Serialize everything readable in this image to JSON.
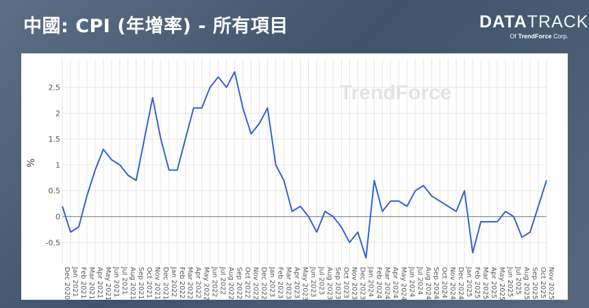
{
  "header": {
    "title": "中國: CPI (年增率) - 所有項目",
    "brand_bold": "DATA",
    "brand_thin": "TRACK",
    "brand_of": "Of",
    "brand_company": "TrendForce",
    "brand_corp": "Corp."
  },
  "watermark": "TrendForce",
  "colors": {
    "line": "#2e5fd6",
    "grid": "#e6e6e6",
    "zero": "#8a8a8a"
  },
  "chart_data": {
    "type": "line",
    "ylabel": "%",
    "ylim": [
      -0.92,
      3.05
    ],
    "yticks": [
      -0.5,
      0,
      0.5,
      1,
      1.5,
      2,
      2.5
    ],
    "grid": true,
    "x": [
      "Dec 2020",
      "Jan 2021",
      "Feb 2021",
      "Mar 2021",
      "Apr 2021",
      "May 2021",
      "Jun 2021",
      "Jul 2021",
      "Aug 2021",
      "Sep 2021",
      "Oct 2021",
      "Nov 2021",
      "Dec 2021",
      "Jan 2022",
      "Feb 2022",
      "Mar 2022",
      "Apr 2022",
      "May 2022",
      "Jun 2022",
      "Jul 2022",
      "Aug 2022",
      "Sep 2022",
      "Oct 2022",
      "Nov 2022",
      "Dec 2022",
      "Jan 2023",
      "Feb 2023",
      "Mar 2023",
      "Apr 2023",
      "May 2023",
      "Jun 2023",
      "Jul 2023",
      "Aug 2023",
      "Sep 2023",
      "Oct 2023",
      "Nov 2023",
      "Dec 2023",
      "Jan 2024",
      "Feb 2024",
      "Mar 2024",
      "Apr 2024",
      "May 2024",
      "Jun 2024",
      "Jul 2024",
      "Aug 2024",
      "Sep 2024",
      "Oct 2024",
      "Nov 2024",
      "Dec 2024",
      "Jan 2025",
      "Feb 2025",
      "Mar 2025",
      "Apr 2025",
      "May 2025",
      "Jun 2025",
      "Jul 2025",
      "Aug 2025",
      "Sep 2025",
      "Oct 2025",
      "Nov 2025"
    ],
    "series": [
      {
        "values": [
          0.2,
          -0.3,
          -0.2,
          0.4,
          0.9,
          1.3,
          1.1,
          1.0,
          0.8,
          0.7,
          1.5,
          2.3,
          1.5,
          0.9,
          0.9,
          1.5,
          2.1,
          2.1,
          2.5,
          2.7,
          2.5,
          2.8,
          2.1,
          1.6,
          1.8,
          2.1,
          1.0,
          0.7,
          0.1,
          0.2,
          0.0,
          -0.3,
          0.1,
          0.0,
          -0.2,
          -0.5,
          -0.3,
          -0.8,
          0.7,
          0.1,
          0.3,
          0.3,
          0.2,
          0.5,
          0.6,
          0.4,
          0.3,
          0.2,
          0.1,
          0.5,
          -0.7,
          -0.1,
          -0.1,
          -0.1,
          0.1,
          0.0,
          -0.4,
          -0.3,
          0.2,
          0.7
        ]
      }
    ]
  }
}
